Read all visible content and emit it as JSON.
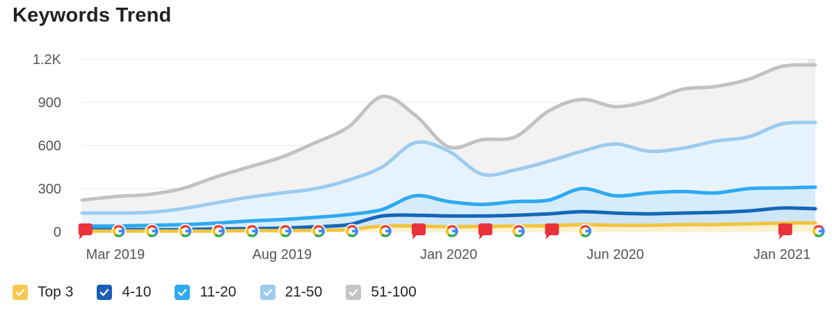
{
  "title": "Keywords Trend",
  "chart_data": {
    "type": "area",
    "title": "Keywords Trend",
    "ylim": [
      0,
      1200
    ],
    "y_ticks": [
      "0",
      "300",
      "600",
      "900",
      "1.2K"
    ],
    "y_tick_values": [
      0,
      300,
      600,
      900,
      1200
    ],
    "x_tick_labels": [
      "Mar 2019",
      "Aug 2019",
      "Jan 2020",
      "Jun 2020",
      "Jan 2021"
    ],
    "x_tick_index": [
      1,
      6,
      11,
      16,
      21
    ],
    "grid": true,
    "legend_position": "bottom",
    "series": [
      {
        "name": "51-100",
        "color": "#c2c2c2",
        "fill": "#f2f2f2",
        "values": [
          220,
          245,
          260,
          300,
          380,
          450,
          520,
          620,
          730,
          940,
          810,
          590,
          640,
          660,
          840,
          920,
          870,
          910,
          990,
          1010,
          1060,
          1150,
          1160
        ]
      },
      {
        "name": "21-50",
        "color": "#9ccbef",
        "fill": "#e7f3fc",
        "values": [
          130,
          130,
          135,
          160,
          200,
          240,
          270,
          300,
          360,
          450,
          620,
          560,
          400,
          430,
          490,
          560,
          610,
          560,
          580,
          630,
          660,
          750,
          760
        ]
      },
      {
        "name": "11-20",
        "color": "#2eaaf0",
        "fill": "#d6ecfb",
        "values": [
          40,
          40,
          45,
          50,
          60,
          75,
          85,
          100,
          120,
          155,
          250,
          210,
          190,
          210,
          220,
          300,
          250,
          270,
          280,
          270,
          300,
          305,
          310
        ]
      },
      {
        "name": "4-10",
        "color": "#1566b7",
        "fill": "#cfe5f8",
        "values": [
          15,
          15,
          15,
          15,
          20,
          22,
          25,
          35,
          50,
          110,
          115,
          110,
          110,
          115,
          125,
          140,
          130,
          125,
          130,
          135,
          145,
          165,
          160
        ]
      },
      {
        "name": "Top 3",
        "color": "#f2c43d",
        "fill": "#fdf1cf",
        "values": [
          5,
          5,
          5,
          5,
          5,
          8,
          8,
          10,
          15,
          40,
          40,
          35,
          38,
          40,
          42,
          50,
          45,
          45,
          50,
          50,
          55,
          60,
          62
        ]
      }
    ],
    "annotations": [
      {
        "type": "note",
        "x_index": 0.1
      },
      {
        "type": "google",
        "x_index": 1.1
      },
      {
        "type": "google",
        "x_index": 2.1
      },
      {
        "type": "google",
        "x_index": 3.1
      },
      {
        "type": "google",
        "x_index": 4.1
      },
      {
        "type": "google",
        "x_index": 5.1
      },
      {
        "type": "google",
        "x_index": 6.1
      },
      {
        "type": "google",
        "x_index": 7.1
      },
      {
        "type": "google",
        "x_index": 8.1
      },
      {
        "type": "google",
        "x_index": 9.1
      },
      {
        "type": "note",
        "x_index": 10.1
      },
      {
        "type": "google",
        "x_index": 11.1
      },
      {
        "type": "note",
        "x_index": 12.1
      },
      {
        "type": "google",
        "x_index": 13.1
      },
      {
        "type": "note",
        "x_index": 14.1
      },
      {
        "type": "google",
        "x_index": 15.1
      },
      {
        "type": "note",
        "x_index": 21.1
      },
      {
        "type": "google",
        "x_index": 22.1
      }
    ]
  },
  "legend": [
    {
      "label": "Top 3",
      "color": "#f9c74f"
    },
    {
      "label": "4-10",
      "color": "#1a5fb4"
    },
    {
      "label": "11-20",
      "color": "#2eaaf0"
    },
    {
      "label": "21-50",
      "color": "#9ccbef"
    },
    {
      "label": "51-100",
      "color": "#c4c4c4"
    }
  ]
}
